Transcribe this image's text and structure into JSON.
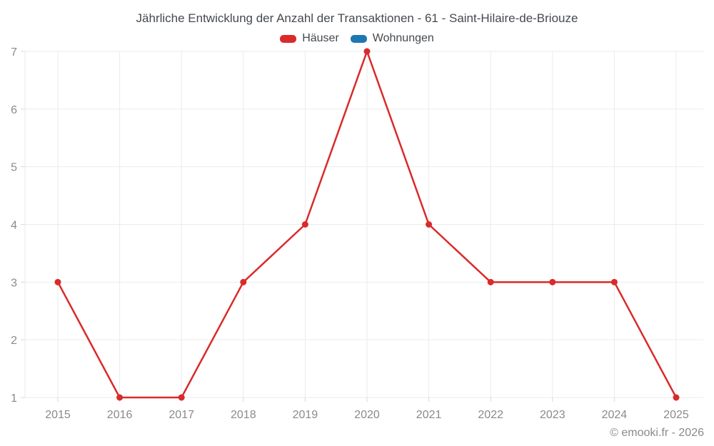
{
  "chart_data": {
    "type": "line",
    "title": "Jährliche Entwicklung der Anzahl der Transaktionen - 61 - Saint-Hilaire-de-Briouze",
    "categories": [
      "2015",
      "2016",
      "2017",
      "2018",
      "2019",
      "2020",
      "2021",
      "2022",
      "2023",
      "2024",
      "2025"
    ],
    "series": [
      {
        "name": "Häuser",
        "color": "#da2a2a",
        "values": [
          3,
          1,
          1,
          3,
          4,
          7,
          4,
          3,
          3,
          3,
          1
        ]
      },
      {
        "name": "Wohnungen",
        "color": "#1f77b4",
        "values": []
      }
    ],
    "xlabel": "",
    "ylabel": "",
    "ylim": [
      1,
      7
    ],
    "yticks": [
      1,
      2,
      3,
      4,
      5,
      6,
      7
    ],
    "grid": true,
    "legend_position": "top",
    "grid_color": "#ebebeb",
    "tick_color": "#d8d8d8",
    "tick_text_color": "#8a8a8a"
  },
  "footer": {
    "copyright": "© emooki.fr - 2026"
  }
}
